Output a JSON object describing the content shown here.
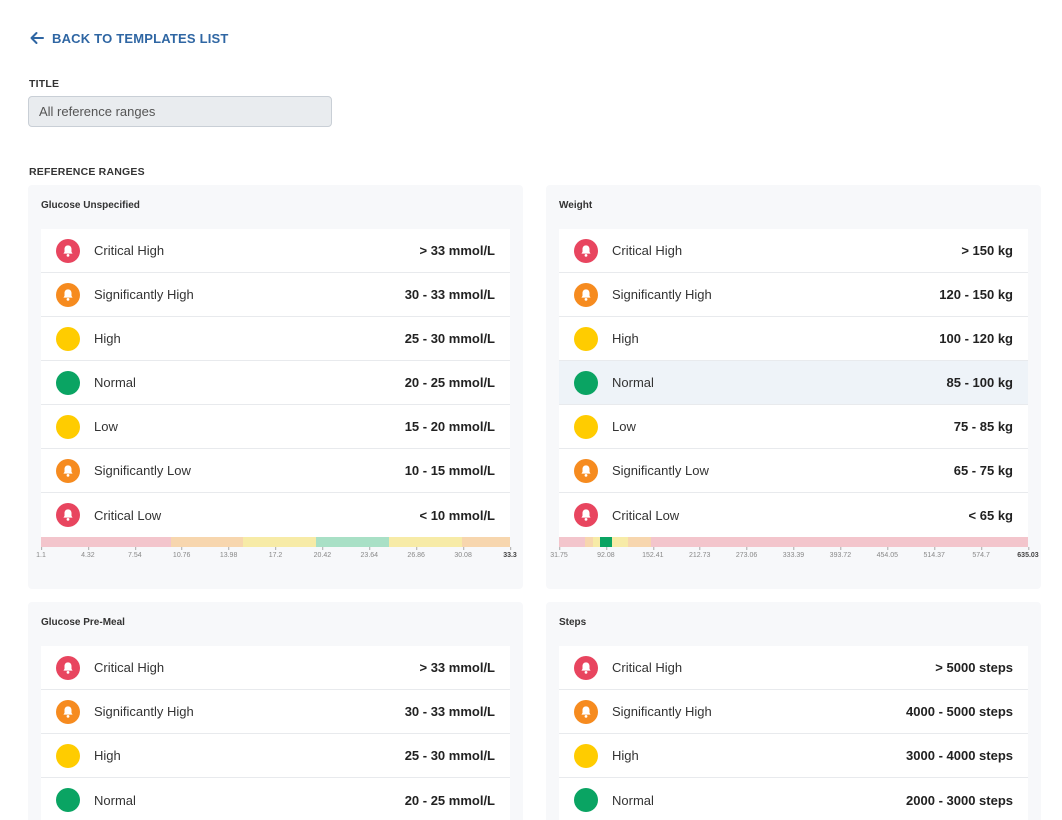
{
  "back_link": {
    "label": "BACK TO TEMPLATES LIST"
  },
  "title_field": {
    "label": "TITLE",
    "value": "All reference ranges"
  },
  "reference_ranges_label": "REFERENCE RANGES",
  "colors": {
    "critical": "#e8455f",
    "significant": "#f68b1f",
    "high_low": "#ffcc00",
    "normal": "#0aa463"
  },
  "cards": [
    {
      "title": "Glucose Unspecified",
      "rows": [
        {
          "level": "critical",
          "icon": "bell-icon",
          "label": "Critical High",
          "value": "> 33 mmol/L"
        },
        {
          "level": "significant",
          "icon": "bell-icon",
          "label": "Significantly High",
          "value": "30 - 33 mmol/L"
        },
        {
          "level": "high_low",
          "icon": "",
          "label": "High",
          "value": "25 - 30 mmol/L"
        },
        {
          "level": "normal",
          "icon": "",
          "label": "Normal",
          "value": "20 - 25 mmol/L"
        },
        {
          "level": "high_low",
          "icon": "",
          "label": "Low",
          "value": "15 - 20 mmol/L"
        },
        {
          "level": "significant",
          "icon": "bell-icon",
          "label": "Significantly Low",
          "value": "10 - 15 mmol/L"
        },
        {
          "level": "critical",
          "icon": "bell-icon",
          "label": "Critical Low",
          "value": "< 10 mmol/L"
        }
      ],
      "bar": [
        {
          "color": "#f3c5cc",
          "from": 1.1,
          "to": 10
        },
        {
          "color": "#f7d6ae",
          "from": 10,
          "to": 15
        },
        {
          "color": "#f7eba7",
          "from": 15,
          "to": 20
        },
        {
          "color": "#a9e0c6",
          "from": 20,
          "to": 25
        },
        {
          "color": "#f7eba7",
          "from": 25,
          "to": 30
        },
        {
          "color": "#f7d6ae",
          "from": 30,
          "to": 33.3
        }
      ],
      "ticks": [
        "1.1",
        "4.32",
        "7.54",
        "10.76",
        "13.98",
        "17.2",
        "20.42",
        "23.64",
        "26.86",
        "30.08",
        "33.3"
      ]
    },
    {
      "title": "Weight",
      "rows": [
        {
          "level": "critical",
          "icon": "bell-icon",
          "label": "Critical High",
          "value": "> 150 kg"
        },
        {
          "level": "significant",
          "icon": "bell-icon",
          "label": "Significantly High",
          "value": "120 - 150 kg"
        },
        {
          "level": "high_low",
          "icon": "",
          "label": "High",
          "value": "100 - 120 kg"
        },
        {
          "level": "normal",
          "icon": "",
          "label": "Normal",
          "value": "85 - 100 kg",
          "highlight": true
        },
        {
          "level": "high_low",
          "icon": "",
          "label": "Low",
          "value": "75 - 85 kg"
        },
        {
          "level": "significant",
          "icon": "bell-icon",
          "label": "Significantly Low",
          "value": "65 - 75 kg"
        },
        {
          "level": "critical",
          "icon": "bell-icon",
          "label": "Critical Low",
          "value": "< 65 kg"
        }
      ],
      "bar": [
        {
          "color": "#f3c5cc",
          "from": 31.75,
          "to": 65
        },
        {
          "color": "#f7d6ae",
          "from": 65,
          "to": 75
        },
        {
          "color": "#f7eba7",
          "from": 75,
          "to": 85
        },
        {
          "color": "#0aa463",
          "from": 85,
          "to": 100
        },
        {
          "color": "#f7eba7",
          "from": 100,
          "to": 120
        },
        {
          "color": "#f7d6ae",
          "from": 120,
          "to": 150
        },
        {
          "color": "#f3c5cc",
          "from": 150,
          "to": 635.03
        }
      ],
      "ticks": [
        "31.75",
        "92.08",
        "152.41",
        "212.73",
        "273.06",
        "333.39",
        "393.72",
        "454.05",
        "514.37",
        "574.7",
        "635.03"
      ]
    },
    {
      "title": "Glucose Pre-Meal",
      "rows": [
        {
          "level": "critical",
          "icon": "bell-icon",
          "label": "Critical High",
          "value": "> 33 mmol/L"
        },
        {
          "level": "significant",
          "icon": "bell-icon",
          "label": "Significantly High",
          "value": "30 - 33 mmol/L"
        },
        {
          "level": "high_low",
          "icon": "",
          "label": "High",
          "value": "25 - 30 mmol/L"
        },
        {
          "level": "normal",
          "icon": "",
          "label": "Normal",
          "value": "20 - 25 mmol/L"
        }
      ]
    },
    {
      "title": "Steps",
      "rows": [
        {
          "level": "critical",
          "icon": "bell-icon",
          "label": "Critical High",
          "value": "> 5000 steps"
        },
        {
          "level": "significant",
          "icon": "bell-icon",
          "label": "Significantly High",
          "value": "4000 - 5000 steps"
        },
        {
          "level": "high_low",
          "icon": "",
          "label": "High",
          "value": "3000 - 4000 steps"
        },
        {
          "level": "normal",
          "icon": "",
          "label": "Normal",
          "value": "2000 - 3000 steps"
        }
      ]
    }
  ]
}
